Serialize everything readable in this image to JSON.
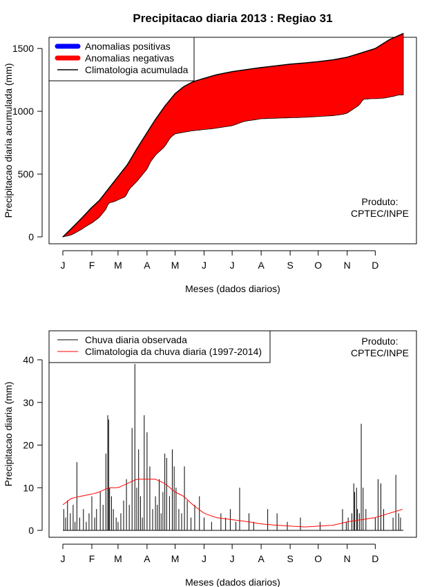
{
  "page_title": "Precipitacao diaria 2013 : Regiao 31",
  "colors": {
    "positive": "#0000ff",
    "negative": "#ff0000",
    "climatology": "#000000",
    "observed_bar": "#000000",
    "clim_daily": "#ff0000"
  },
  "chart_data": [
    {
      "type": "area",
      "ylabel": "Precipitacao diaria acumulada (mm)",
      "xlabel": "Meses (dados diarios)",
      "x_tick_labels": [
        "J",
        "F",
        "M",
        "A",
        "M",
        "J",
        "J",
        "A",
        "S",
        "O",
        "N",
        "D"
      ],
      "x_tick_days": [
        1,
        32,
        60,
        91,
        121,
        152,
        182,
        213,
        244,
        274,
        305,
        335
      ],
      "xlim": [
        1,
        365
      ],
      "ylim": [
        0,
        1600
      ],
      "y_ticks": [
        0,
        500,
        1000,
        1500
      ],
      "legend": {
        "position": "top-left",
        "items": [
          "Anomalias positivas",
          "Anomalias negativas",
          "Climatologia acumulada"
        ]
      },
      "annotation": "Produto:\nCPTEC/INPE",
      "series": [
        {
          "name": "Climatologia acumulada",
          "x": [
            1,
            10,
            20,
            32,
            40,
            50,
            60,
            70,
            80,
            91,
            100,
            110,
            121,
            130,
            140,
            152,
            165,
            182,
            200,
            213,
            230,
            244,
            260,
            274,
            290,
            305,
            320,
            335,
            350,
            365
          ],
          "values": [
            0,
            65,
            140,
            235,
            290,
            385,
            480,
            575,
            700,
            830,
            935,
            1040,
            1140,
            1195,
            1235,
            1262,
            1290,
            1315,
            1335,
            1348,
            1363,
            1375,
            1385,
            1395,
            1410,
            1430,
            1465,
            1500,
            1570,
            1620
          ]
        },
        {
          "name": "Chuva observada acumulada",
          "x": [
            1,
            10,
            20,
            25,
            32,
            40,
            47,
            50,
            56,
            60,
            68,
            72,
            80,
            91,
            95,
            100,
            110,
            116,
            121,
            128,
            140,
            152,
            160,
            182,
            195,
            213,
            230,
            244,
            260,
            274,
            290,
            300,
            305,
            310,
            318,
            322,
            330,
            335,
            345,
            355,
            360,
            365
          ],
          "values": [
            0,
            15,
            55,
            80,
            110,
            155,
            220,
            270,
            280,
            295,
            320,
            380,
            440,
            540,
            600,
            650,
            720,
            790,
            820,
            830,
            845,
            855,
            860,
            885,
            920,
            940,
            945,
            948,
            952,
            958,
            965,
            975,
            985,
            1010,
            1050,
            1095,
            1100,
            1100,
            1105,
            1120,
            1130,
            1130
          ]
        }
      ]
    },
    {
      "type": "bar",
      "ylabel": "Precipitacao diaria (mm)",
      "xlabel": "Meses (dados diarios)",
      "x_tick_labels": [
        "J",
        "F",
        "M",
        "A",
        "M",
        "J",
        "J",
        "A",
        "S",
        "O",
        "N",
        "D"
      ],
      "x_tick_days": [
        1,
        32,
        60,
        91,
        121,
        152,
        182,
        213,
        244,
        274,
        305,
        335
      ],
      "xlim": [
        1,
        365
      ],
      "ylim": [
        0,
        40
      ],
      "y_ticks": [
        0,
        10,
        20,
        30,
        40
      ],
      "legend": {
        "position": "top-left",
        "items": [
          "Chuva diaria observada",
          "Climatologia da chuva diaria (1997-2014)"
        ]
      },
      "annotation": "Produto:\nCPTEC/INPE",
      "series": [
        {
          "name": "Chuva diaria observada",
          "x": [
            2,
            4,
            6,
            9,
            12,
            14,
            16,
            19,
            23,
            26,
            29,
            32,
            35,
            37,
            41,
            44,
            47,
            49,
            50,
            51,
            53,
            55,
            58,
            60,
            63,
            66,
            69,
            72,
            75,
            78,
            80,
            82,
            84,
            86,
            88,
            91,
            94,
            97,
            100,
            102,
            104,
            106,
            108,
            110,
            112,
            115,
            118,
            120,
            122,
            125,
            128,
            131,
            134,
            138,
            142,
            147,
            152,
            160,
            170,
            175,
            180,
            186,
            190,
            200,
            205,
            220,
            230,
            241,
            255,
            276,
            300,
            304,
            306,
            310,
            312,
            313,
            315,
            316,
            318,
            320,
            322,
            325,
            335,
            338,
            341,
            344,
            354,
            357,
            360,
            362
          ],
          "values": [
            5,
            3,
            7,
            4,
            6,
            2,
            16,
            3,
            5,
            2,
            4,
            8,
            3,
            5,
            9,
            6,
            18,
            27,
            26,
            10,
            8,
            5,
            3,
            2,
            4,
            7,
            12,
            6,
            24,
            39,
            10,
            19,
            8,
            3,
            27,
            23,
            15,
            5,
            8,
            6,
            12,
            4,
            9,
            18,
            17,
            8,
            19,
            15,
            10,
            5,
            4,
            15,
            7,
            3,
            6,
            8,
            3,
            2,
            4,
            3,
            5,
            2,
            10,
            4,
            2,
            5,
            4,
            2,
            3,
            2,
            5,
            2,
            3,
            4,
            11,
            9,
            10,
            5,
            4,
            25,
            10,
            5,
            3,
            12,
            11,
            5,
            3,
            13,
            4,
            3
          ]
        },
        {
          "name": "Climatologia da chuva diaria (1997-2014)",
          "x": [
            1,
            10,
            20,
            32,
            40,
            50,
            60,
            70,
            80,
            91,
            100,
            110,
            121,
            130,
            140,
            152,
            165,
            182,
            200,
            213,
            230,
            244,
            260,
            274,
            290,
            305,
            320,
            335,
            350,
            365
          ],
          "values": [
            6,
            7.5,
            8,
            8.5,
            9,
            10,
            10,
            11,
            12,
            12,
            12,
            11,
            9,
            8,
            6,
            4,
            3,
            2.5,
            2,
            1.5,
            1.2,
            1,
            0.8,
            1,
            1.2,
            2,
            2.5,
            3,
            4,
            5
          ]
        }
      ]
    }
  ]
}
